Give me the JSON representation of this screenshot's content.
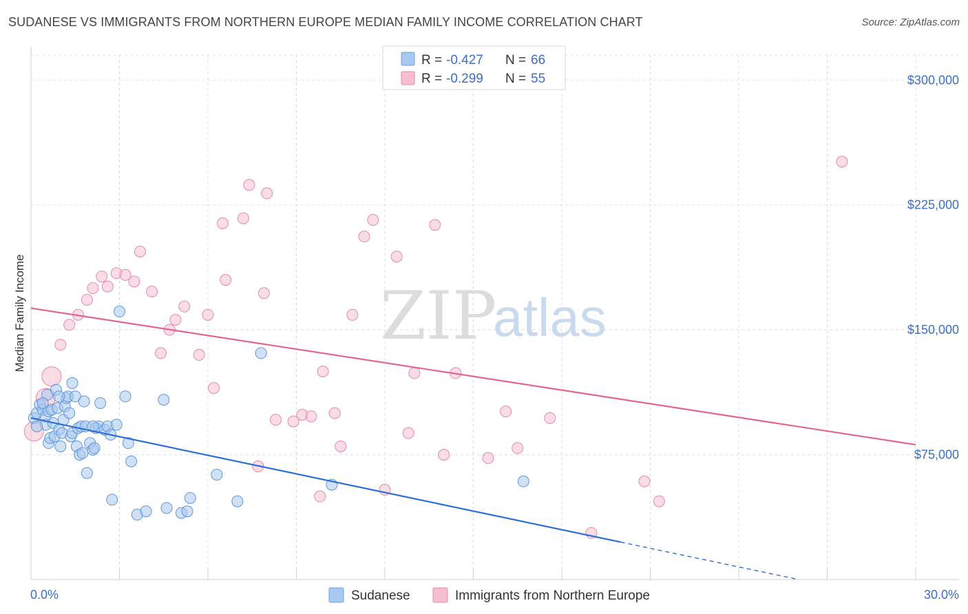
{
  "title": "SUDANESE VS IMMIGRANTS FROM NORTHERN EUROPE MEDIAN FAMILY INCOME CORRELATION CHART",
  "source": "Source: ZipAtlas.com",
  "watermark": {
    "zip": "ZIP",
    "atlas": "atlas"
  },
  "colors": {
    "blue_fill": "#a9c8ee",
    "blue_line": "#2b6fd6",
    "pink_fill": "#f6bfd0",
    "pink_line": "#e0668f",
    "axis_text": "#3b6fc4",
    "grid": "#dddddd"
  },
  "legend": {
    "rows": [
      {
        "r_label": "R = ",
        "r_value": "-0.427",
        "n_label": "N = ",
        "n_value": "66"
      },
      {
        "r_label": "R = ",
        "r_value": "-0.299",
        "n_label": "N = ",
        "n_value": "55"
      }
    ]
  },
  "bottom_legend": [
    "Sudanese",
    "Immigrants from Northern Europe"
  ],
  "chart_data": {
    "type": "scatter",
    "title": "SUDANESE VS IMMIGRANTS FROM NORTHERN EUROPE MEDIAN FAMILY INCOME CORRELATION CHART",
    "xlabel": "",
    "ylabel": "Median Family Income",
    "xlim": [
      0,
      30
    ],
    "ylim": [
      0,
      315000
    ],
    "x_tick_labels": [
      "0.0%",
      "30.0%"
    ],
    "y_ticks": [
      75000,
      150000,
      225000,
      300000
    ],
    "y_tick_labels": [
      "$75,000",
      "$150,000",
      "$225,000",
      "$300,000"
    ],
    "grid": true,
    "legend_position": "top-center",
    "series": [
      {
        "name": "Sudanese",
        "color": "#a9c8ee",
        "trend": {
          "x0": 0,
          "y0": 97000,
          "x1": 20.0,
          "y1": 22500,
          "dashed_to_x": 26.0
        },
        "points": [
          [
            0.1,
            97000
          ],
          [
            0.2,
            100000
          ],
          [
            0.3,
            105000
          ],
          [
            0.4,
            102000
          ],
          [
            0.5,
            98000
          ],
          [
            0.55,
            111000
          ],
          [
            0.6,
            101000
          ],
          [
            0.5,
            93000
          ],
          [
            0.6,
            82000
          ],
          [
            0.65,
            85000
          ],
          [
            0.7,
            102000
          ],
          [
            0.75,
            94000
          ],
          [
            0.8,
            86000
          ],
          [
            0.85,
            114000
          ],
          [
            0.9,
            103000
          ],
          [
            0.95,
            90000
          ],
          [
            1.0,
            80000
          ],
          [
            1.05,
            88000
          ],
          [
            1.1,
            96000
          ],
          [
            1.15,
            104000
          ],
          [
            1.2,
            109000
          ],
          [
            1.25,
            110000
          ],
          [
            1.3,
            100000
          ],
          [
            1.35,
            86000
          ],
          [
            1.4,
            88000
          ],
          [
            1.4,
            118000
          ],
          [
            1.5,
            110000
          ],
          [
            1.55,
            80000
          ],
          [
            1.6,
            91000
          ],
          [
            1.65,
            75000
          ],
          [
            1.7,
            92000
          ],
          [
            1.75,
            76000
          ],
          [
            1.8,
            107000
          ],
          [
            1.85,
            92000
          ],
          [
            1.9,
            64000
          ],
          [
            2.0,
            82000
          ],
          [
            2.1,
            78000
          ],
          [
            2.15,
            79000
          ],
          [
            2.2,
            91000
          ],
          [
            2.3,
            92000
          ],
          [
            2.35,
            106000
          ],
          [
            2.5,
            90000
          ],
          [
            2.6,
            92000
          ],
          [
            2.7,
            87000
          ],
          [
            2.75,
            48000
          ],
          [
            2.9,
            93000
          ],
          [
            3.0,
            161000
          ],
          [
            3.2,
            110000
          ],
          [
            3.3,
            82000
          ],
          [
            3.4,
            71000
          ],
          [
            3.6,
            39000
          ],
          [
            3.9,
            41000
          ],
          [
            4.5,
            108000
          ],
          [
            4.6,
            43000
          ],
          [
            5.1,
            40000
          ],
          [
            5.3,
            41000
          ],
          [
            5.4,
            49000
          ],
          [
            6.3,
            63000
          ],
          [
            7.0,
            47000
          ],
          [
            7.8,
            136000
          ],
          [
            10.2,
            57000
          ],
          [
            16.7,
            59000
          ],
          [
            0.4,
            106000
          ],
          [
            0.95,
            110000
          ],
          [
            2.1,
            92000
          ],
          [
            0.2,
            92000
          ]
        ]
      },
      {
        "name": "Immigrants from Northern Europe",
        "color": "#f6bfd0",
        "trend": {
          "x0": 0,
          "y0": 163000,
          "x1": 30.0,
          "y1": 81000
        },
        "points": [
          [
            0.1,
            89000
          ],
          [
            0.5,
            109000
          ],
          [
            0.7,
            122000
          ],
          [
            1.0,
            141000
          ],
          [
            1.3,
            153000
          ],
          [
            1.6,
            159000
          ],
          [
            1.9,
            168000
          ],
          [
            2.1,
            175000
          ],
          [
            2.4,
            182000
          ],
          [
            2.6,
            176000
          ],
          [
            2.9,
            184000
          ],
          [
            3.2,
            183000
          ],
          [
            3.5,
            179000
          ],
          [
            3.7,
            197000
          ],
          [
            4.1,
            173000
          ],
          [
            4.4,
            136000
          ],
          [
            4.7,
            150000
          ],
          [
            4.9,
            156000
          ],
          [
            5.2,
            164000
          ],
          [
            5.7,
            135000
          ],
          [
            6.0,
            159000
          ],
          [
            6.2,
            115000
          ],
          [
            6.5,
            214000
          ],
          [
            6.6,
            180000
          ],
          [
            7.2,
            217000
          ],
          [
            7.4,
            237000
          ],
          [
            7.7,
            68000
          ],
          [
            7.9,
            172000
          ],
          [
            8.0,
            232000
          ],
          [
            8.3,
            96000
          ],
          [
            8.9,
            95000
          ],
          [
            9.2,
            99000
          ],
          [
            9.5,
            98000
          ],
          [
            9.8,
            50000
          ],
          [
            9.9,
            125000
          ],
          [
            10.3,
            100000
          ],
          [
            10.5,
            80000
          ],
          [
            10.9,
            159000
          ],
          [
            11.3,
            206000
          ],
          [
            11.6,
            216000
          ],
          [
            12.0,
            54000
          ],
          [
            12.4,
            194000
          ],
          [
            12.8,
            88000
          ],
          [
            13.0,
            124000
          ],
          [
            13.7,
            213000
          ],
          [
            14.0,
            75000
          ],
          [
            14.4,
            124000
          ],
          [
            15.5,
            73000
          ],
          [
            16.1,
            101000
          ],
          [
            16.5,
            79000
          ],
          [
            17.6,
            97000
          ],
          [
            19.0,
            28000
          ],
          [
            20.8,
            59000
          ],
          [
            21.3,
            47000
          ],
          [
            27.5,
            251000
          ]
        ]
      }
    ]
  }
}
